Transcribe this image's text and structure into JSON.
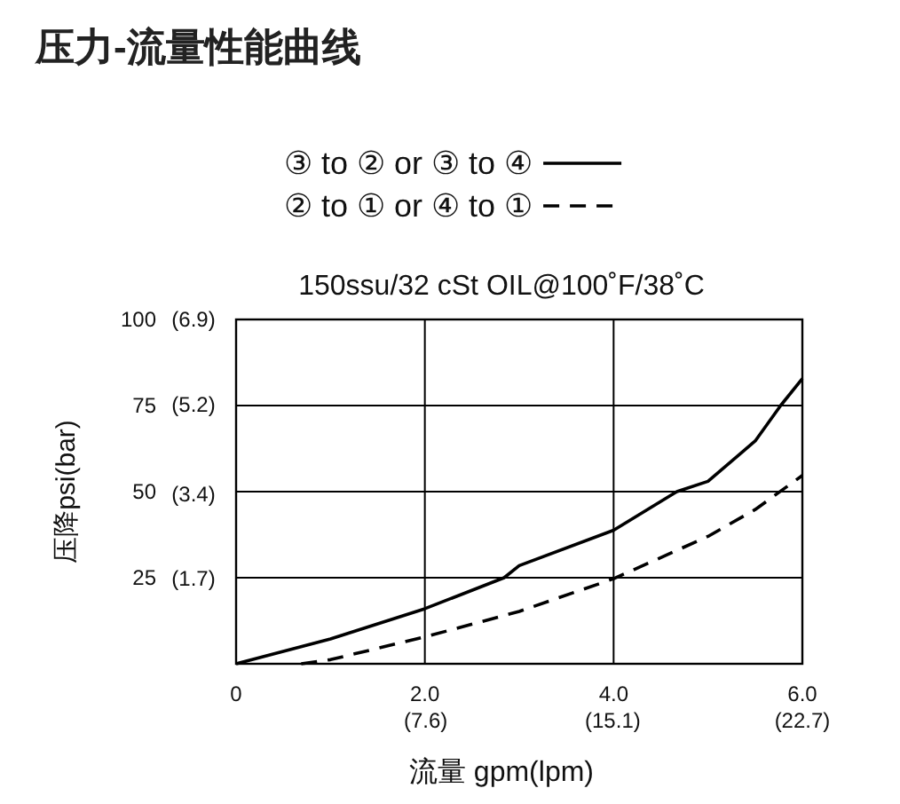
{
  "chart_data": {
    "type": "line",
    "title": "压力-流量性能曲线",
    "subtitle": "150ssu/32 cSt OIL@100˚F/38˚C",
    "xlabel": "流量 gpm(lpm)",
    "ylabel": "压降psi(bar)",
    "xlim": [
      0,
      6
    ],
    "ylim": [
      0,
      100
    ],
    "xticks": [
      0,
      {
        "value": 2,
        "label": "2.0"
      },
      {
        "value": 4,
        "label": "4.0"
      },
      {
        "value": 6,
        "label": "6.0"
      }
    ],
    "yticks": [
      25,
      50,
      75,
      100
    ],
    "x2lim": [
      0,
      22.7
    ],
    "x2ticks": [
      {
        "value": 7.6,
        "label": "(7.6)"
      },
      {
        "value": 15.1,
        "label": "(15.1)"
      },
      {
        "value": 22.7,
        "label": "(22.7)"
      }
    ],
    "y2lim": [
      0,
      6.9
    ],
    "y2ticks": [
      {
        "value": 1.7,
        "label": "(1.7)"
      },
      {
        "value": 3.4,
        "label": "(3.4)"
      },
      {
        "value": 5.2,
        "label": "(5.2)"
      },
      {
        "value": 6.9,
        "label": "(6.9)"
      }
    ],
    "grid": true,
    "legend": "top",
    "series": [
      {
        "name": "③ to ② or ③ to ④",
        "color": "#000000",
        "line_style": "solid",
        "x": [
          0,
          1,
          2,
          2.84,
          3,
          4,
          4.67,
          5,
          5.5,
          5.77,
          6
        ],
        "values": [
          0,
          7.2,
          16,
          25,
          28.5,
          38.8,
          50,
          53,
          64.7,
          75,
          82.8
        ]
      },
      {
        "name": "② to ① or ④ to ①",
        "color": "#000000",
        "line_style": "dashed",
        "x": [
          0.69,
          1,
          2,
          3,
          4,
          5,
          5.5,
          6
        ],
        "values": [
          0,
          1.2,
          7.8,
          15.2,
          24.7,
          37,
          44.8,
          54.7
        ]
      }
    ]
  }
}
